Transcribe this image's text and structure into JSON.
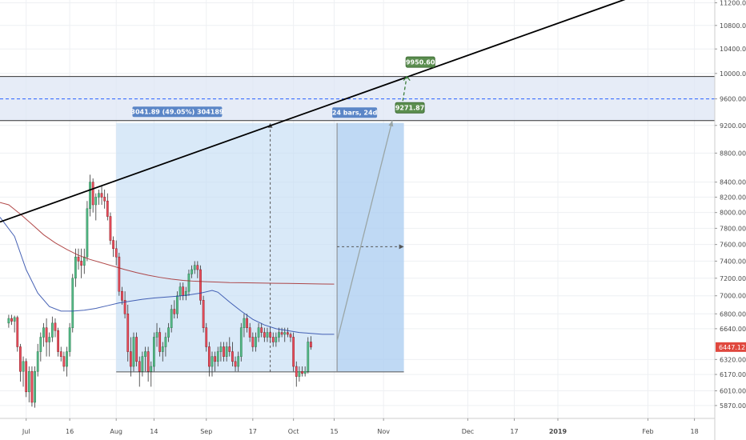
{
  "chart_data": {
    "type": "candlestick",
    "y_scale": "log",
    "ylim": [
      5750,
      11250
    ],
    "y_ticks": [
      {
        "value": 5870,
        "label": "5870.00"
      },
      {
        "value": 6010,
        "label": "6010.00"
      },
      {
        "value": 6170,
        "label": "6170.00"
      },
      {
        "value": 6320,
        "label": "6320.00"
      },
      {
        "value": 6640,
        "label": "6640.00"
      },
      {
        "value": 6800,
        "label": "6800.00"
      },
      {
        "value": 7000,
        "label": "7000.00"
      },
      {
        "value": 7200,
        "label": "7200.00"
      },
      {
        "value": 7400,
        "label": "7400.00"
      },
      {
        "value": 7600,
        "label": "7600.00"
      },
      {
        "value": 7800,
        "label": "7800.00"
      },
      {
        "value": 8000,
        "label": "8000.00"
      },
      {
        "value": 8200,
        "label": "8200.00"
      },
      {
        "value": 8400,
        "label": "8400.00"
      },
      {
        "value": 8800,
        "label": "8800.00"
      },
      {
        "value": 9200,
        "label": "9200.00"
      },
      {
        "value": 9600,
        "label": "9600.00"
      },
      {
        "value": 10000,
        "label": "10000.00"
      },
      {
        "value": 10400,
        "label": "10400.00"
      },
      {
        "value": 10800,
        "label": "10800.00"
      },
      {
        "value": 11200,
        "label": "11200.00"
      }
    ],
    "x_ticks": [
      {
        "day": 6,
        "label": "Jul"
      },
      {
        "day": 21,
        "label": "16"
      },
      {
        "day": 37,
        "label": "Aug"
      },
      {
        "day": 50,
        "label": "14"
      },
      {
        "day": 68,
        "label": "Sep"
      },
      {
        "day": 84,
        "label": "17"
      },
      {
        "day": 98,
        "label": "Oct"
      },
      {
        "day": 112,
        "label": "15"
      },
      {
        "day": 129,
        "label": "Nov"
      },
      {
        "day": 158,
        "label": "Dec"
      },
      {
        "day": 174,
        "label": "17"
      },
      {
        "day": 189,
        "label": "2019"
      },
      {
        "day": 220,
        "label": "Feb"
      },
      {
        "day": 236,
        "label": "18"
      }
    ],
    "x_major_labels": [
      "2019"
    ],
    "x_range": [
      -3,
      243
    ],
    "grid": true,
    "candles": [
      [
        6700,
        6790,
        6650,
        6750
      ],
      [
        6750,
        6790,
        6680,
        6720
      ],
      [
        6720,
        6780,
        6600,
        6760
      ],
      [
        6760,
        6780,
        6400,
        6450
      ],
      [
        6450,
        6480,
        6100,
        6200
      ],
      [
        6200,
        6350,
        6050,
        6300
      ],
      [
        6300,
        6330,
        5950,
        6000
      ],
      [
        6000,
        6250,
        5900,
        6200
      ],
      [
        6200,
        6250,
        5860,
        5900
      ],
      [
        5900,
        6250,
        5850,
        6200
      ],
      [
        6200,
        6480,
        6150,
        6400
      ],
      [
        6400,
        6600,
        6300,
        6550
      ],
      [
        6550,
        6700,
        6450,
        6650
      ],
      [
        6650,
        6750,
        6350,
        6500
      ],
      [
        6500,
        6600,
        6350,
        6550
      ],
      [
        6550,
        6770,
        6500,
        6700
      ],
      [
        6700,
        6750,
        6550,
        6620
      ],
      [
        6620,
        6650,
        6350,
        6400
      ],
      [
        6400,
        6450,
        6300,
        6350
      ],
      [
        6350,
        6400,
        6200,
        6250
      ],
      [
        6250,
        6450,
        6150,
        6400
      ],
      [
        6400,
        6700,
        6350,
        6650
      ],
      [
        6650,
        7250,
        6600,
        7200
      ],
      [
        7200,
        7550,
        7100,
        7450
      ],
      [
        7450,
        7550,
        7300,
        7400
      ],
      [
        7400,
        7550,
        7200,
        7350
      ],
      [
        7350,
        7550,
        7250,
        7450
      ],
      [
        7450,
        8150,
        7400,
        8050
      ],
      [
        8050,
        8500,
        7950,
        8400
      ],
      [
        8400,
        8450,
        8000,
        8100
      ],
      [
        8100,
        8250,
        7900,
        8200
      ],
      [
        8200,
        8300,
        8100,
        8250
      ],
      [
        8250,
        8350,
        8100,
        8200
      ],
      [
        8200,
        8300,
        8050,
        8150
      ],
      [
        8150,
        8250,
        7900,
        7950
      ],
      [
        7950,
        8000,
        7600,
        7650
      ],
      [
        7650,
        7700,
        7450,
        7550
      ],
      [
        7550,
        7650,
        7350,
        7450
      ],
      [
        7450,
        7500,
        7000,
        7050
      ],
      [
        7050,
        7100,
        6900,
        6950
      ],
      [
        6950,
        7050,
        6750,
        6800
      ],
      [
        6800,
        6900,
        6300,
        6400
      ],
      [
        6400,
        6550,
        6150,
        6250
      ],
      [
        6250,
        6600,
        6200,
        6550
      ],
      [
        6550,
        6600,
        6250,
        6300
      ],
      [
        6300,
        6350,
        6050,
        6200
      ],
      [
        6200,
        6400,
        6150,
        6350
      ],
      [
        6350,
        6450,
        6200,
        6400
      ],
      [
        6400,
        6450,
        6100,
        6200
      ],
      [
        6200,
        6300,
        6050,
        6250
      ],
      [
        6250,
        6600,
        6200,
        6550
      ],
      [
        6550,
        6700,
        6450,
        6600
      ],
      [
        6600,
        6650,
        6350,
        6400
      ],
      [
        6400,
        6500,
        6300,
        6450
      ],
      [
        6450,
        6600,
        6350,
        6550
      ],
      [
        6550,
        6700,
        6500,
        6650
      ],
      [
        6650,
        6900,
        6600,
        6850
      ],
      [
        6850,
        6950,
        6750,
        6800
      ],
      [
        6800,
        7050,
        6750,
        7000
      ],
      [
        7000,
        7150,
        6950,
        7100
      ],
      [
        7100,
        7150,
        6950,
        7000
      ],
      [
        7000,
        7100,
        6950,
        7050
      ],
      [
        7050,
        7300,
        7000,
        7250
      ],
      [
        7250,
        7350,
        7200,
        7300
      ],
      [
        7300,
        7400,
        7250,
        7350
      ],
      [
        7350,
        7400,
        7200,
        7300
      ],
      [
        7300,
        7350,
        6900,
        6950
      ],
      [
        6950,
        7000,
        6600,
        6650
      ],
      [
        6650,
        6700,
        6400,
        6450
      ],
      [
        6450,
        6500,
        6150,
        6250
      ],
      [
        6250,
        6400,
        6150,
        6350
      ],
      [
        6350,
        6400,
        6200,
        6300
      ],
      [
        6300,
        6450,
        6250,
        6400
      ],
      [
        6400,
        6500,
        6300,
        6450
      ],
      [
        6450,
        6500,
        6300,
        6350
      ],
      [
        6350,
        6500,
        6300,
        6450
      ],
      [
        6450,
        6550,
        6350,
        6400
      ],
      [
        6400,
        6500,
        6250,
        6300
      ],
      [
        6300,
        6350,
        6200,
        6250
      ],
      [
        6250,
        6400,
        6200,
        6350
      ],
      [
        6350,
        6700,
        6300,
        6650
      ],
      [
        6650,
        6800,
        6550,
        6750
      ],
      [
        6750,
        6800,
        6600,
        6650
      ],
      [
        6650,
        6700,
        6500,
        6550
      ],
      [
        6550,
        6600,
        6400,
        6450
      ],
      [
        6450,
        6600,
        6400,
        6550
      ],
      [
        6550,
        6700,
        6500,
        6650
      ],
      [
        6650,
        6700,
        6550,
        6600
      ],
      [
        6600,
        6650,
        6500,
        6550
      ],
      [
        6550,
        6650,
        6500,
        6600
      ],
      [
        6600,
        6650,
        6500,
        6550
      ],
      [
        6550,
        6600,
        6450,
        6500
      ],
      [
        6500,
        6600,
        6450,
        6550
      ],
      [
        6550,
        6650,
        6500,
        6600
      ],
      [
        6600,
        6650,
        6550,
        6580
      ],
      [
        6580,
        6650,
        6500,
        6600
      ],
      [
        6600,
        6650,
        6550,
        6580
      ],
      [
        6580,
        6600,
        6500,
        6550
      ],
      [
        6550,
        6600,
        6200,
        6250
      ],
      [
        6250,
        6300,
        6050,
        6150
      ],
      [
        6150,
        6250,
        6100,
        6200
      ],
      [
        6200,
        6250,
        6150,
        6180
      ],
      [
        6180,
        6250,
        6150,
        6200
      ],
      [
        6200,
        6550,
        6180,
        6500
      ],
      [
        6500,
        6560,
        6420,
        6447
      ]
    ],
    "ma_red": [
      [
        -3,
        8130
      ],
      [
        0,
        8100
      ],
      [
        4,
        7980
      ],
      [
        8,
        7850
      ],
      [
        12,
        7720
      ],
      [
        16,
        7620
      ],
      [
        20,
        7540
      ],
      [
        24,
        7470
      ],
      [
        28,
        7420
      ],
      [
        32,
        7380
      ],
      [
        36,
        7340
      ],
      [
        40,
        7300
      ],
      [
        44,
        7265
      ],
      [
        48,
        7235
      ],
      [
        52,
        7210
      ],
      [
        56,
        7190
      ],
      [
        60,
        7175
      ],
      [
        64,
        7165
      ],
      [
        68,
        7160
      ],
      [
        72,
        7155
      ],
      [
        76,
        7150
      ],
      [
        80,
        7148
      ],
      [
        84,
        7146
      ],
      [
        88,
        7144
      ],
      [
        92,
        7142
      ],
      [
        96,
        7140
      ],
      [
        100,
        7138
      ],
      [
        104,
        7136
      ],
      [
        108,
        7134
      ],
      [
        112,
        7132
      ]
    ],
    "ma_blue": [
      [
        -3,
        7940
      ],
      [
        2,
        7700
      ],
      [
        6,
        7300
      ],
      [
        10,
        7030
      ],
      [
        14,
        6880
      ],
      [
        18,
        6830
      ],
      [
        22,
        6830
      ],
      [
        26,
        6840
      ],
      [
        30,
        6860
      ],
      [
        34,
        6890
      ],
      [
        38,
        6920
      ],
      [
        42,
        6940
      ],
      [
        46,
        6960
      ],
      [
        50,
        6975
      ],
      [
        54,
        6985
      ],
      [
        58,
        6995
      ],
      [
        62,
        7010
      ],
      [
        66,
        7030
      ],
      [
        70,
        7060
      ],
      [
        72,
        7040
      ],
      [
        76,
        6930
      ],
      [
        80,
        6830
      ],
      [
        84,
        6740
      ],
      [
        88,
        6680
      ],
      [
        92,
        6640
      ],
      [
        96,
        6620
      ],
      [
        100,
        6600
      ],
      [
        104,
        6590
      ],
      [
        108,
        6580
      ],
      [
        112,
        6580
      ]
    ],
    "trendline": {
      "from": [
        -3,
        7880
      ],
      "to": [
        230,
        11600
      ]
    },
    "resistance_zone": {
      "upper": 9950.6,
      "lower": 9271.87,
      "mid": 9600
    },
    "measure_box": {
      "x_start": 37,
      "x_end": 136,
      "low": 6195,
      "high": 9236
    },
    "measure_label": "3041.89 (49.05%) 304189",
    "projection_box": {
      "x_start": 113,
      "x_end": 136,
      "low": 6195,
      "high": 9236
    },
    "projection_label": "24 bars, 24d",
    "projection_arrow": {
      "from": [
        113,
        6510
      ],
      "to": [
        132,
        9271.87
      ]
    },
    "projection_mid_value": 7573,
    "target_arrow": {
      "from": [
        135,
        9400
      ],
      "to": [
        137,
        9950.6
      ]
    },
    "target_labels": [
      "9950.60",
      "9271.87"
    ],
    "last_price": 6447,
    "last_price_label": "6447.12"
  }
}
